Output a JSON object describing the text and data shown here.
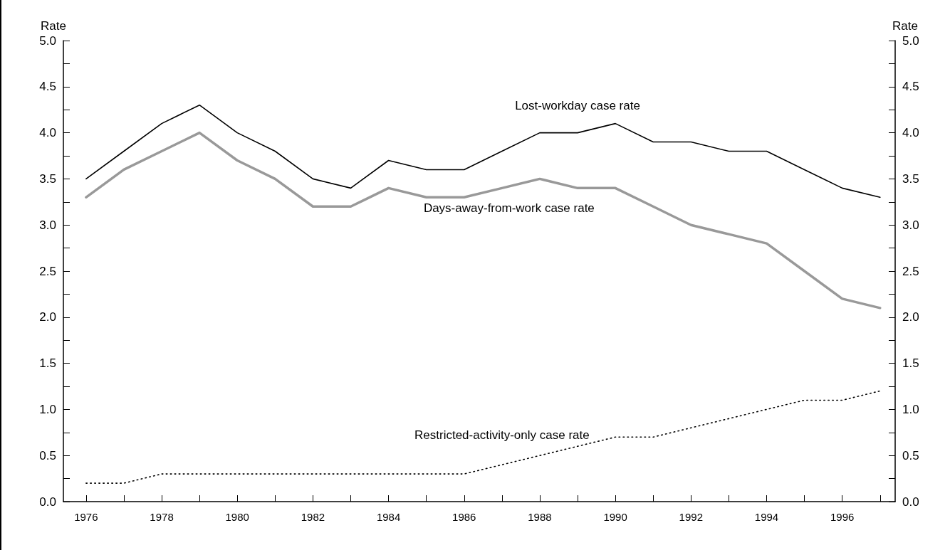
{
  "chart_data": {
    "type": "line",
    "ylabel": "Rate",
    "y2label": "Rate",
    "legend": false,
    "grid": false,
    "marker": "none",
    "x": [
      1976,
      1977,
      1978,
      1979,
      1980,
      1981,
      1982,
      1983,
      1984,
      1985,
      1986,
      1987,
      1988,
      1989,
      1990,
      1991,
      1992,
      1993,
      1994,
      1995,
      1996,
      1997
    ],
    "xlim": [
      1975.4,
      1997.4
    ],
    "xticks": [
      1976,
      {
        "value": 1977,
        "label": null
      },
      1978,
      {
        "value": 1979,
        "label": null
      },
      1980,
      {
        "value": 1981,
        "label": null
      },
      1982,
      {
        "value": 1983,
        "label": null
      },
      1984,
      {
        "value": 1985,
        "label": null
      },
      1986,
      {
        "value": 1987,
        "label": null
      },
      1988,
      {
        "value": 1989,
        "label": null
      },
      1990,
      {
        "value": 1991,
        "label": null
      },
      1992,
      {
        "value": 1993,
        "label": null
      },
      1994,
      {
        "value": 1995,
        "label": null
      },
      1996,
      {
        "value": 1997,
        "label": null
      }
    ],
    "ylim": [
      0,
      5
    ],
    "yticks": [
      {
        "value": 0,
        "label": "0.0"
      },
      {
        "value": 0.25,
        "label": null
      },
      {
        "value": 0.5,
        "label": "0.5"
      },
      {
        "value": 0.75,
        "label": null
      },
      {
        "value": 1,
        "label": "1.0"
      },
      {
        "value": 1.25,
        "label": null
      },
      {
        "value": 1.5,
        "label": "1.5"
      },
      {
        "value": 1.75,
        "label": null
      },
      {
        "value": 2,
        "label": "2.0"
      },
      {
        "value": 2.25,
        "label": null
      },
      {
        "value": 2.5,
        "label": "2.5"
      },
      {
        "value": 2.75,
        "label": null
      },
      {
        "value": 3,
        "label": "3.0"
      },
      {
        "value": 3.25,
        "label": null
      },
      {
        "value": 3.5,
        "label": "3.5"
      },
      {
        "value": 3.75,
        "label": null
      },
      {
        "value": 4,
        "label": "4.0"
      },
      {
        "value": 4.25,
        "label": null
      },
      {
        "value": 4.5,
        "label": "4.5"
      },
      {
        "value": 4.75,
        "label": null
      },
      {
        "value": 5,
        "label": "5.0"
      }
    ],
    "y2lim": [
      0,
      5
    ],
    "y2ticks": [
      {
        "value": 0,
        "label": "0.0"
      },
      {
        "value": 0.25,
        "label": null
      },
      {
        "value": 0.5,
        "label": "0.5"
      },
      {
        "value": 0.75,
        "label": null
      },
      {
        "value": 1,
        "label": "1.0"
      },
      {
        "value": 1.25,
        "label": null
      },
      {
        "value": 1.5,
        "label": "1.5"
      },
      {
        "value": 1.75,
        "label": null
      },
      {
        "value": 2,
        "label": "2.0"
      },
      {
        "value": 2.25,
        "label": null
      },
      {
        "value": 2.5,
        "label": "2.5"
      },
      {
        "value": 2.75,
        "label": null
      },
      {
        "value": 3,
        "label": "3.0"
      },
      {
        "value": 3.25,
        "label": null
      },
      {
        "value": 3.5,
        "label": "3.5"
      },
      {
        "value": 3.75,
        "label": null
      },
      {
        "value": 4,
        "label": "4.0"
      },
      {
        "value": 4.25,
        "label": null
      },
      {
        "value": 4.5,
        "label": "4.5"
      },
      {
        "value": 4.75,
        "label": null
      },
      {
        "value": 5,
        "label": "5.0"
      }
    ],
    "series": [
      {
        "name": "Lost-workday case rate",
        "color": "#000000",
        "line_style": "solid",
        "values": [
          3.5,
          3.8,
          4.1,
          4.3,
          4.0,
          3.8,
          3.5,
          3.4,
          3.7,
          3.6,
          3.6,
          3.8,
          4.0,
          4.0,
          4.1,
          3.9,
          3.9,
          3.8,
          3.8,
          3.6,
          3.4,
          3.3
        ]
      },
      {
        "name": "Days-away-from-work case rate",
        "color": "#999999",
        "line_style": "solid",
        "values": [
          3.3,
          3.6,
          3.8,
          4.0,
          3.7,
          3.5,
          3.2,
          3.2,
          3.4,
          3.3,
          3.3,
          3.4,
          3.5,
          3.4,
          3.4,
          3.2,
          3.0,
          2.9,
          2.8,
          2.5,
          2.2,
          2.1
        ]
      },
      {
        "name": "Restricted-activity-only case rate",
        "color": "#000000",
        "line_style": "dotted",
        "values": [
          0.2,
          0.2,
          0.3,
          0.3,
          0.3,
          0.3,
          0.3,
          0.3,
          0.3,
          0.3,
          0.3,
          0.4,
          0.5,
          0.6,
          0.7,
          0.7,
          0.8,
          0.9,
          1.0,
          1.1,
          1.1,
          1.2
        ]
      }
    ]
  }
}
